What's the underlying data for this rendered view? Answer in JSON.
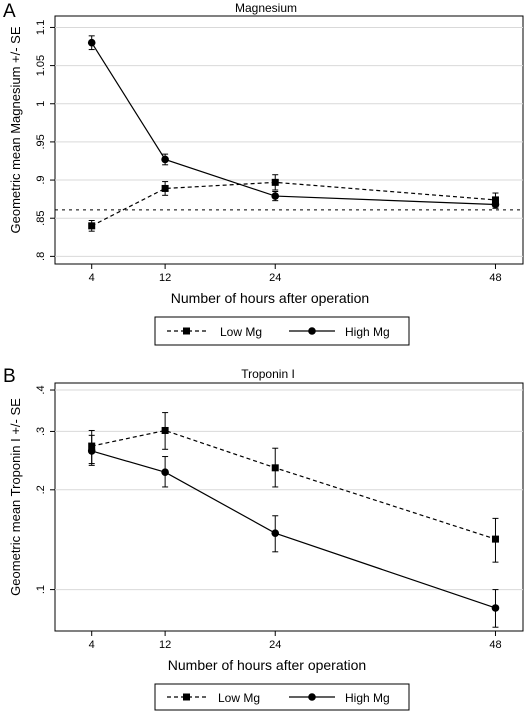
{
  "chart_data": [
    {
      "panel_label": "A",
      "type": "line",
      "title": "Magnesium",
      "xlabel": "Number of hours after operation",
      "ylabel": "Geometric mean Magnesium +/- SE",
      "x": [
        4,
        12,
        24,
        48
      ],
      "x_ticks": [
        "4",
        "12",
        "24",
        "48"
      ],
      "y_ticks": [
        0.8,
        0.85,
        0.9,
        0.95,
        1,
        1.05,
        1.1
      ],
      "y_tick_labels": [
        ".8",
        ".85",
        ".9",
        ".95",
        "1",
        "1.05",
        "1.1"
      ],
      "ylim": [
        0.79,
        1.115
      ],
      "xlim": [
        0,
        51
      ],
      "grid": true,
      "reference_line": 0.861,
      "series": [
        {
          "name": "Low Mg",
          "style": "dashed",
          "marker": "square",
          "values": [
            0.84,
            0.889,
            0.897,
            0.874
          ],
          "errors": [
            0.007,
            0.009,
            0.01,
            0.009
          ]
        },
        {
          "name": "High Mg",
          "style": "solid",
          "marker": "circle",
          "values": [
            1.08,
            0.927,
            0.879,
            0.868
          ],
          "errors": [
            0.009,
            0.007,
            0.006,
            0.005
          ]
        }
      ],
      "legend": [
        "Low Mg",
        "High Mg"
      ],
      "legend_position": "bottom"
    },
    {
      "panel_label": "B",
      "type": "line",
      "title": "Troponin I",
      "xlabel": "Number of hours after operation",
      "ylabel": "Geometric mean Troponin I +/- SE",
      "scale": "log",
      "x": [
        4,
        12,
        24,
        48
      ],
      "x_ticks": [
        "4",
        "12",
        "24",
        "48"
      ],
      "y_ticks": [
        0.1,
        0.2,
        0.3,
        0.4
      ],
      "y_tick_labels": [
        ".1",
        ".2",
        ".3",
        ".4"
      ],
      "ylim": [
        0.075,
        0.42
      ],
      "xlim": [
        0,
        51
      ],
      "grid": true,
      "series": [
        {
          "name": "Low Mg",
          "style": "dashed",
          "marker": "square",
          "values": [
            0.271,
            0.302,
            0.233,
            0.142
          ],
          "err_lo": [
            0.24,
            0.265,
            0.204,
            0.121
          ],
          "err_hi": [
            0.302,
            0.342,
            0.267,
            0.164
          ]
        },
        {
          "name": "High Mg",
          "style": "solid",
          "marker": "circle",
          "values": [
            0.262,
            0.226,
            0.148,
            0.088
          ],
          "err_lo": [
            0.237,
            0.204,
            0.13,
            0.077
          ],
          "err_hi": [
            0.292,
            0.252,
            0.167,
            0.1
          ]
        }
      ],
      "legend": [
        "Low Mg",
        "High Mg"
      ],
      "legend_position": "bottom"
    }
  ]
}
